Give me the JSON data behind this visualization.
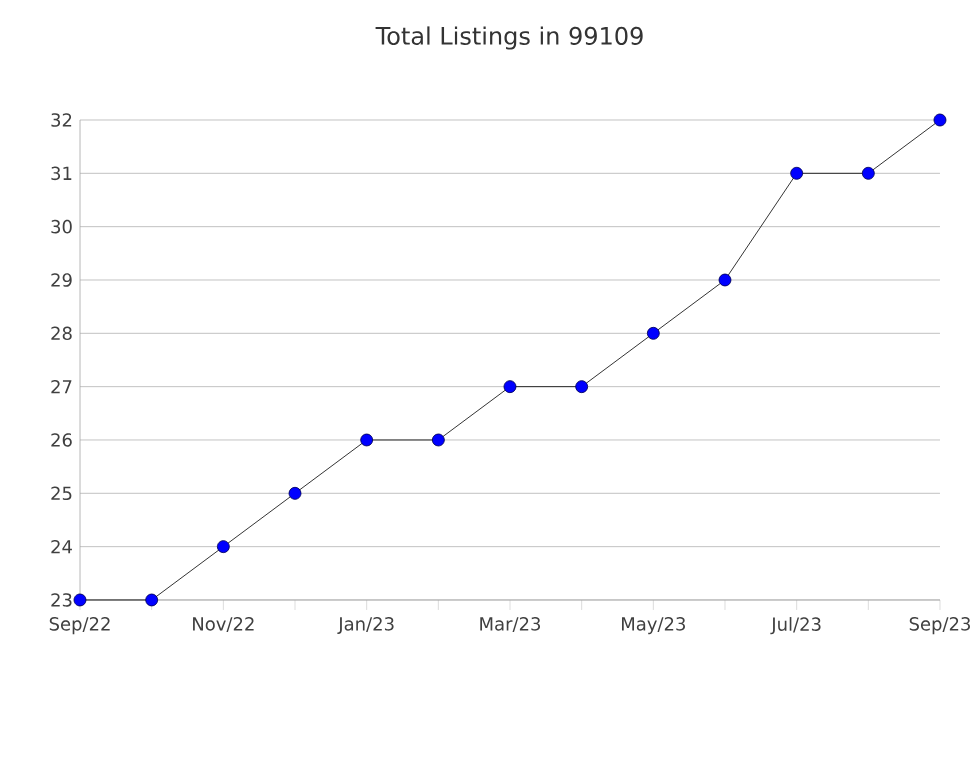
{
  "chart_data": {
    "type": "line",
    "title": "Total Listings in 99109",
    "categories": [
      "Sep/22",
      null,
      "Nov/22",
      null,
      "Jan/23",
      null,
      "Mar/23",
      null,
      "May/23",
      null,
      "Jul/23",
      null,
      "Sep/23"
    ],
    "series": [
      {
        "color": "#0000ff",
        "values": [
          23,
          23,
          24,
          25,
          26,
          26,
          27,
          27,
          28,
          29,
          31,
          31,
          32
        ]
      }
    ],
    "ylim": [
      23,
      32
    ],
    "yticks": [
      23,
      24,
      25,
      26,
      27,
      28,
      29,
      30,
      31,
      32
    ],
    "grid": "y",
    "marker": "circle",
    "line_style": "solid"
  }
}
